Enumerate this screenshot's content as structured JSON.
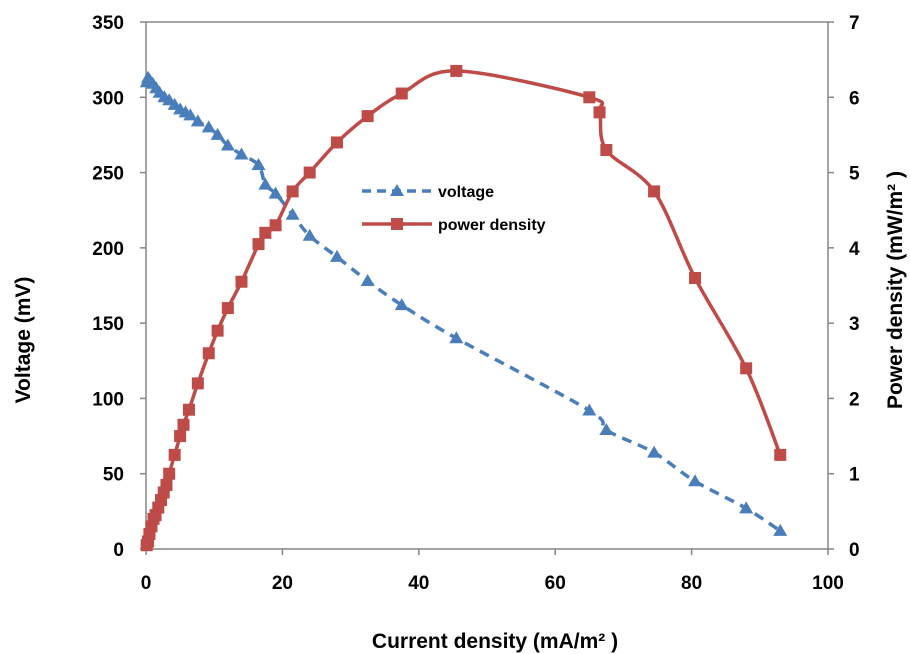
{
  "chart_data": {
    "type": "line",
    "xlabel": "Current density (mA/m² )",
    "ylabel": "Voltage (mV)",
    "y2label": "Power density (mW/m² )",
    "xlim": [
      0,
      100
    ],
    "ylim": [
      0,
      350
    ],
    "y2lim": [
      0,
      7
    ],
    "x_ticks": [
      "0",
      "20",
      "40",
      "60",
      "80",
      "100"
    ],
    "y_ticks": [
      "0",
      "50",
      "100",
      "150",
      "200",
      "250",
      "300",
      "350"
    ],
    "y2_ticks": [
      "0",
      "1",
      "2",
      "3",
      "4",
      "5",
      "6",
      "7"
    ],
    "grid": false,
    "legend": {
      "position": "center",
      "entries": [
        "voltage",
        "power density"
      ]
    },
    "series": [
      {
        "name": "voltage",
        "axis": "left",
        "color": "#4a7ebb",
        "line_style": "dashed",
        "marker": "triangle",
        "x": [
          0.1,
          0.3,
          0.6,
          1.0,
          1.5,
          2.0,
          2.7,
          3.4,
          4.2,
          5.0,
          5.8,
          6.5,
          7.6,
          9.2,
          10.5,
          12.0,
          14.0,
          16.5,
          17.5,
          19.0,
          21.5,
          24.0,
          28.0,
          32.5,
          37.5,
          45.5,
          65.0,
          67.5,
          74.5,
          80.5,
          88.0,
          93.0
        ],
        "y": [
          310,
          313,
          311,
          309,
          306,
          303,
          300,
          298,
          295,
          292,
          290,
          288,
          284,
          280,
          275,
          268,
          262,
          255,
          242,
          236,
          222,
          208,
          194,
          178,
          162,
          140,
          92,
          79,
          64,
          45,
          27,
          12
        ]
      },
      {
        "name": "power density",
        "axis": "right",
        "color": "#be4b48",
        "line_style": "solid",
        "marker": "square",
        "x": [
          0.1,
          0.3,
          0.5,
          0.8,
          1.1,
          1.4,
          1.8,
          2.2,
          2.6,
          3.0,
          3.4,
          4.2,
          5.0,
          5.5,
          6.3,
          7.6,
          9.2,
          10.5,
          12.0,
          14.0,
          16.5,
          17.5,
          19.0,
          21.5,
          24.0,
          28.0,
          32.5,
          37.5,
          45.5,
          65.0,
          66.5,
          67.5,
          74.5,
          80.5,
          88.0,
          93.0
        ],
        "y": [
          0.05,
          0.1,
          0.2,
          0.3,
          0.4,
          0.45,
          0.55,
          0.65,
          0.75,
          0.85,
          1.0,
          1.25,
          1.5,
          1.65,
          1.85,
          2.2,
          2.6,
          2.9,
          3.2,
          3.55,
          4.05,
          4.2,
          4.3,
          4.75,
          5.0,
          5.4,
          5.75,
          6.05,
          6.35,
          6.0,
          5.8,
          5.3,
          4.75,
          3.6,
          2.4,
          1.25
        ]
      }
    ]
  }
}
